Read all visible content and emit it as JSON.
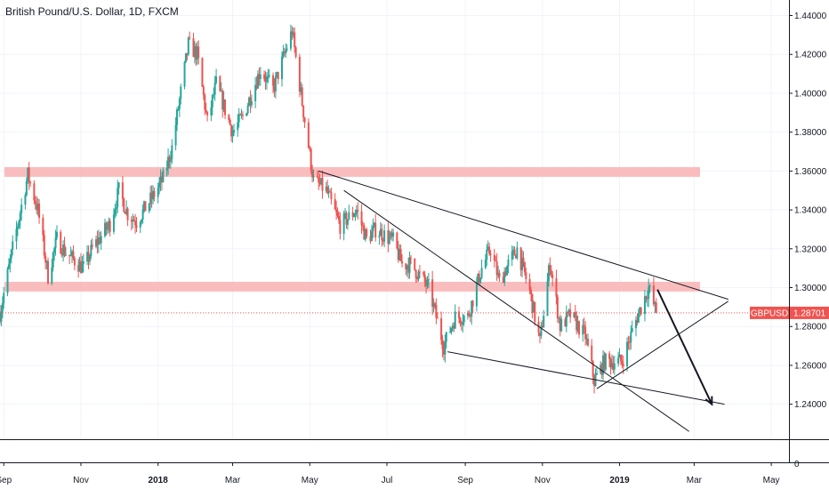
{
  "chart_data": {
    "type": "candlestick",
    "title": "British Pound/U.S. Dollar, 1D, FXCM",
    "symbol": "GBPUSD",
    "last_price": 1.28701,
    "last_price_label": "1.28701",
    "ylim": [
      1.222,
      1.448
    ],
    "y_ticks": [
      {
        "value": 1.44,
        "label": "1.44000"
      },
      {
        "value": 1.42,
        "label": "1.42000"
      },
      {
        "value": 1.4,
        "label": "1.40000"
      },
      {
        "value": 1.38,
        "label": "1.38000"
      },
      {
        "value": 1.36,
        "label": "1.36000"
      },
      {
        "value": 1.34,
        "label": "1.34000"
      },
      {
        "value": 1.32,
        "label": "1.32000"
      },
      {
        "value": 1.3,
        "label": "1.30000"
      },
      {
        "value": 1.28,
        "label": "1.28000"
      },
      {
        "value": 1.26,
        "label": "1.26000"
      },
      {
        "value": 1.24,
        "label": "1.24000"
      }
    ],
    "volume_zero_label": "0",
    "xlim": [
      "2017-08-29",
      "2019-05-15"
    ],
    "x_ticks": [
      {
        "date": "2017-09-01",
        "label": "Sep",
        "bold": false
      },
      {
        "date": "2017-11-01",
        "label": "Nov",
        "bold": false
      },
      {
        "date": "2018-01-01",
        "label": "2018",
        "bold": true
      },
      {
        "date": "2018-03-01",
        "label": "Mar",
        "bold": false
      },
      {
        "date": "2018-05-01",
        "label": "May",
        "bold": false
      },
      {
        "date": "2018-07-01",
        "label": "Jul",
        "bold": false
      },
      {
        "date": "2018-09-01",
        "label": "Sep",
        "bold": false
      },
      {
        "date": "2018-11-01",
        "label": "Nov",
        "bold": false
      },
      {
        "date": "2019-01-01",
        "label": "2019",
        "bold": true
      },
      {
        "date": "2019-03-01",
        "label": "Mar",
        "bold": false
      },
      {
        "date": "2019-05-01",
        "label": "May",
        "bold": false
      }
    ],
    "price_path": [
      [
        "2017-08-29",
        1.287
      ],
      [
        "2017-09-08",
        1.32
      ],
      [
        "2017-09-20",
        1.358
      ],
      [
        "2017-09-28",
        1.34
      ],
      [
        "2017-10-06",
        1.306
      ],
      [
        "2017-10-13",
        1.325
      ],
      [
        "2017-10-20",
        1.318
      ],
      [
        "2017-11-03",
        1.31
      ],
      [
        "2017-11-10",
        1.32
      ],
      [
        "2017-11-24",
        1.333
      ],
      [
        "2017-12-01",
        1.35
      ],
      [
        "2017-12-08",
        1.338
      ],
      [
        "2017-12-15",
        1.334
      ],
      [
        "2017-12-29",
        1.348
      ],
      [
        "2018-01-05",
        1.356
      ],
      [
        "2018-01-12",
        1.372
      ],
      [
        "2018-01-25",
        1.425
      ],
      [
        "2018-02-01",
        1.42
      ],
      [
        "2018-02-09",
        1.385
      ],
      [
        "2018-02-16",
        1.405
      ],
      [
        "2018-03-01",
        1.38
      ],
      [
        "2018-03-09",
        1.388
      ],
      [
        "2018-03-23",
        1.412
      ],
      [
        "2018-04-02",
        1.402
      ],
      [
        "2018-04-17",
        1.432
      ],
      [
        "2018-04-25",
        1.395
      ],
      [
        "2018-05-04",
        1.355
      ],
      [
        "2018-05-14",
        1.35
      ],
      [
        "2018-05-25",
        1.332
      ],
      [
        "2018-06-07",
        1.34
      ],
      [
        "2018-06-15",
        1.325
      ],
      [
        "2018-06-22",
        1.33
      ],
      [
        "2018-07-06",
        1.324
      ],
      [
        "2018-07-13",
        1.312
      ],
      [
        "2018-07-20",
        1.312
      ],
      [
        "2018-08-03",
        1.3
      ],
      [
        "2018-08-15",
        1.27
      ],
      [
        "2018-08-24",
        1.285
      ],
      [
        "2018-09-03",
        1.285
      ],
      [
        "2018-09-14",
        1.31
      ],
      [
        "2018-09-21",
        1.32
      ],
      [
        "2018-09-28",
        1.303
      ],
      [
        "2018-10-05",
        1.312
      ],
      [
        "2018-10-12",
        1.32
      ],
      [
        "2018-10-22",
        1.298
      ],
      [
        "2018-10-30",
        1.272
      ],
      [
        "2018-11-07",
        1.313
      ],
      [
        "2018-11-15",
        1.28
      ],
      [
        "2018-11-23",
        1.286
      ],
      [
        "2018-12-05",
        1.275
      ],
      [
        "2018-12-12",
        1.252
      ],
      [
        "2018-12-20",
        1.262
      ],
      [
        "2019-01-03",
        1.262
      ],
      [
        "2019-01-15",
        1.285
      ],
      [
        "2019-01-24",
        1.3
      ],
      [
        "2019-01-30",
        1.287
      ]
    ],
    "resistance_zones": [
      {
        "from": 1.357,
        "to": 1.362
      },
      {
        "from": 1.298,
        "to": 1.303
      }
    ],
    "trend_lines": [
      {
        "from": [
          "2018-05-08",
          1.36
        ],
        "to": [
          "2019-03-28",
          1.294
        ]
      },
      {
        "from": [
          "2018-08-18",
          1.267
        ],
        "to": [
          "2019-03-25",
          1.24
        ]
      },
      {
        "from": [
          "2018-05-28",
          1.35
        ],
        "to": [
          "2019-02-25",
          1.226
        ]
      },
      {
        "from": [
          "2018-12-14",
          1.248
        ],
        "to": [
          "2019-03-28",
          1.293
        ]
      }
    ],
    "forecast_arrow": {
      "from": [
        "2019-01-31",
        1.299
      ],
      "to": [
        "2019-03-15",
        1.24
      ]
    },
    "colors": {
      "up": "#26a69a",
      "down": "#ef5350",
      "zone": "#f9b1b3",
      "line": "#131722",
      "price_line": "#ef5350",
      "axis": "#131722",
      "grid": "#f0f3fa"
    }
  }
}
